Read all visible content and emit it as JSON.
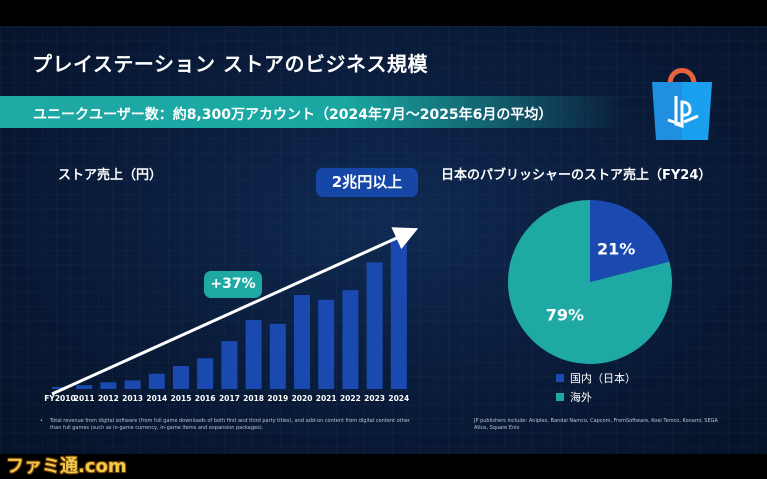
{
  "slide": {
    "title": "プレイステーション ストアのビジネス規模",
    "banner": "ユニークユーザー数：約8,300万アカウント（2024年7月〜2025年6月の平均）",
    "left_title": "ストア売上（円）",
    "right_title": "日本のパブリッシャーのストア売上（FY24）",
    "callout_total": "2兆円以上",
    "callout_growth": "+37%",
    "footnote_left_bullet": "•",
    "footnote_left": "Total revenue from digital software (from full game downloads of both first and third party titles), and add-on content from digital content other than full games (such as in-game currency, in-game items and expansion packages).",
    "footnote_right": "JP publishers include: Aniplex, Bandai Namco, Capcom, FromSoftware, Koei Temco, Konami, SEGA Atlus, Square Enix",
    "watermark": "ファミ通.com"
  },
  "colors": {
    "bar": "#1a49b0",
    "accent_teal": "#1fa9a5",
    "domestic": "#1a49b0",
    "overseas": "#1fa9a5"
  },
  "icon": "playstation-store-bag-icon",
  "chart_data": [
    {
      "type": "bar",
      "title": "ストア売上（円）",
      "categories": [
        "FY2010",
        "2011",
        "2012",
        "2013",
        "2014",
        "2015",
        "2016",
        "2017",
        "2018",
        "2019",
        "2020",
        "2021",
        "2022",
        "2023",
        "2024"
      ],
      "values": [
        2,
        4,
        7,
        9,
        16,
        24,
        32,
        50,
        72,
        68,
        98,
        93,
        103,
        132,
        157
      ],
      "ylim": [
        0,
        170
      ],
      "grid": false,
      "annotations": [
        "+37%",
        "2兆円以上"
      ]
    },
    {
      "type": "pie",
      "title": "日本のパブリッシャーのストア売上（FY24）",
      "labels": [
        "国内（日本）",
        "海外"
      ],
      "values": [
        21,
        79
      ],
      "value_labels": [
        "21%",
        "79%"
      ],
      "legend": "bottom"
    }
  ]
}
